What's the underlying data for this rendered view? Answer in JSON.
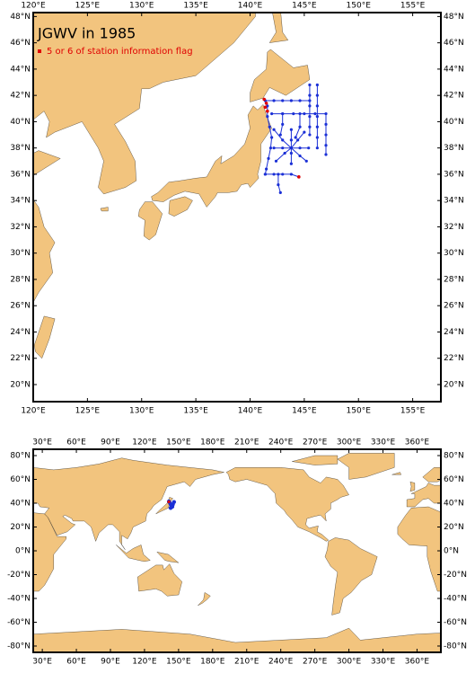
{
  "top_map": {
    "title": "JGWV in 1985",
    "legend": "5 or 6 of station information flag",
    "xlim": [
      120,
      157.6
    ],
    "ylim": [
      18.7,
      48.3
    ],
    "xticks": [
      {
        "value": 120,
        "label": "120°E"
      },
      {
        "value": 125,
        "label": "125°E"
      },
      {
        "value": 130,
        "label": "130°E"
      },
      {
        "value": 135,
        "label": "135°E"
      },
      {
        "value": 140,
        "label": "140°E"
      },
      {
        "value": 145,
        "label": "145°E"
      },
      {
        "value": 150,
        "label": "150°E"
      },
      {
        "value": 155,
        "label": "155°E"
      }
    ],
    "yticks": [
      {
        "value": 20,
        "label": "20°N"
      },
      {
        "value": 22,
        "label": "22°N"
      },
      {
        "value": 24,
        "label": "24°N"
      },
      {
        "value": 26,
        "label": "26°N"
      },
      {
        "value": 28,
        "label": "28°N"
      },
      {
        "value": 30,
        "label": "30°N"
      },
      {
        "value": 32,
        "label": "32°N"
      },
      {
        "value": 34,
        "label": "34°N"
      },
      {
        "value": 36,
        "label": "36°N"
      },
      {
        "value": 38,
        "label": "38°N"
      },
      {
        "value": 40,
        "label": "40°N"
      },
      {
        "value": 42,
        "label": "42°N"
      },
      {
        "value": 44,
        "label": "44°N"
      },
      {
        "value": 46,
        "label": "46°N"
      },
      {
        "value": 48,
        "label": "48°N"
      }
    ]
  },
  "bottom_map": {
    "xlim": [
      22,
      381
    ],
    "ylim": [
      -85.3,
      85.3
    ],
    "xticks": [
      {
        "value": 30,
        "label": "30°E"
      },
      {
        "value": 60,
        "label": "60°E"
      },
      {
        "value": 90,
        "label": "90°E"
      },
      {
        "value": 120,
        "label": "120°E"
      },
      {
        "value": 150,
        "label": "150°E"
      },
      {
        "value": 180,
        "label": "180°E"
      },
      {
        "value": 210,
        "label": "210°E"
      },
      {
        "value": 240,
        "label": "240°E"
      },
      {
        "value": 270,
        "label": "270°E"
      },
      {
        "value": 300,
        "label": "300°E"
      },
      {
        "value": 330,
        "label": "330°E"
      },
      {
        "value": 360,
        "label": "360°E"
      }
    ],
    "yticks": [
      {
        "value": 80,
        "label": "80°N"
      },
      {
        "value": 60,
        "label": "60°N"
      },
      {
        "value": 40,
        "label": "40°N"
      },
      {
        "value": 20,
        "label": "20°N"
      },
      {
        "value": 0,
        "label": "0°N"
      },
      {
        "value": -20,
        "label": "-20°N"
      },
      {
        "value": -40,
        "label": "-40°N"
      },
      {
        "value": -60,
        "label": "-60°N"
      },
      {
        "value": -80,
        "label": "-80°N"
      }
    ]
  }
}
